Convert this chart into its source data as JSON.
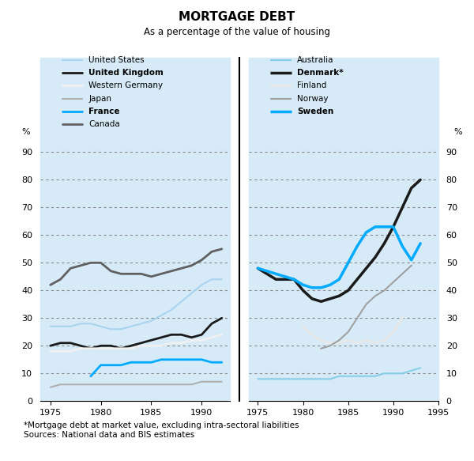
{
  "title": "MORTGAGE DEBT",
  "subtitle": "As a percentage of the value of housing",
  "footnote": "*Mortgage debt at market value, excluding intra-sectoral liabilities\nSources: National data and BIS estimates",
  "background_color": "#d6eaf8",
  "left_panel": {
    "years": [
      1975,
      1976,
      1977,
      1978,
      1979,
      1980,
      1981,
      1982,
      1983,
      1984,
      1985,
      1986,
      1987,
      1988,
      1989,
      1990,
      1991,
      1992
    ],
    "series": {
      "United States": [
        27,
        27,
        27,
        28,
        28,
        27,
        26,
        26,
        27,
        28,
        29,
        31,
        33,
        36,
        39,
        42,
        44,
        44
      ],
      "United Kingdom": [
        20,
        21,
        21,
        20,
        19,
        20,
        20,
        19,
        20,
        21,
        22,
        23,
        24,
        24,
        23,
        24,
        28,
        30
      ],
      "Western Germany": [
        18,
        18,
        18,
        19,
        19,
        19,
        19,
        19,
        19,
        20,
        20,
        20,
        21,
        21,
        22,
        22,
        23,
        24
      ],
      "Japan": [
        5,
        6,
        6,
        6,
        6,
        6,
        6,
        6,
        6,
        6,
        6,
        6,
        6,
        6,
        6,
        7,
        7,
        7
      ],
      "France": [
        null,
        null,
        null,
        null,
        9,
        13,
        13,
        13,
        14,
        14,
        14,
        15,
        15,
        15,
        15,
        15,
        14,
        14
      ],
      "Canada": [
        42,
        44,
        48,
        49,
        50,
        50,
        47,
        46,
        46,
        46,
        45,
        46,
        47,
        48,
        49,
        51,
        54,
        55
      ]
    },
    "colors": {
      "United States": "#a8d4f0",
      "United Kingdom": "#1a1a1a",
      "Western Germany": "#f0f0f0",
      "Japan": "#b0b0b0",
      "France": "#00aaff",
      "Canada": "#606060"
    },
    "linewidths": {
      "United States": 1.5,
      "United Kingdom": 2.0,
      "Western Germany": 2.0,
      "Japan": 1.5,
      "France": 2.0,
      "Canada": 2.0
    }
  },
  "right_panel": {
    "years": [
      1975,
      1976,
      1977,
      1978,
      1979,
      1980,
      1981,
      1982,
      1983,
      1984,
      1985,
      1986,
      1987,
      1988,
      1989,
      1990,
      1991,
      1992,
      1993
    ],
    "series": {
      "Australia": [
        8,
        8,
        8,
        8,
        8,
        8,
        8,
        8,
        8,
        9,
        9,
        9,
        9,
        9,
        10,
        10,
        10,
        11,
        12
      ],
      "Denmark": [
        48,
        46,
        44,
        44,
        44,
        40,
        37,
        36,
        37,
        38,
        40,
        44,
        48,
        52,
        57,
        63,
        70,
        77,
        80
      ],
      "Sweden": [
        48,
        47,
        46,
        45,
        44,
        42,
        41,
        41,
        42,
        44,
        50,
        56,
        61,
        63,
        63,
        63,
        56,
        51,
        57
      ]
    },
    "norway_years": [
      1982,
      1983,
      1984,
      1985,
      1986,
      1987,
      1988,
      1989,
      1990,
      1991,
      1992
    ],
    "norway_values": [
      19,
      20,
      22,
      25,
      30,
      35,
      38,
      40,
      43,
      46,
      49
    ],
    "finland_years": [
      1980,
      1981,
      1982,
      1983,
      1984,
      1985,
      1986,
      1987,
      1988,
      1989,
      1990,
      1991
    ],
    "finland_values": [
      27,
      24,
      22,
      21,
      21,
      22,
      21,
      22,
      21,
      22,
      25,
      30
    ],
    "colors": {
      "Australia": "#87ceeb",
      "Denmark": "#1a1a1a",
      "Finland": "#e8e8e8",
      "Norway": "#a0a0a0",
      "Sweden": "#00aaff"
    },
    "linewidths": {
      "Australia": 1.5,
      "Denmark": 2.5,
      "Finland": 2.0,
      "Norway": 1.5,
      "Sweden": 2.5
    }
  },
  "ylim": [
    0,
    95
  ],
  "yticks": [
    0,
    10,
    20,
    30,
    40,
    50,
    60,
    70,
    80,
    90
  ],
  "left_xlim": [
    1974.0,
    1992.8
  ],
  "right_xlim": [
    1974.0,
    1995.0
  ],
  "left_xticks": [
    1975,
    1980,
    1985,
    1990
  ],
  "right_xticks": [
    1975,
    1980,
    1985,
    1990,
    1995
  ]
}
